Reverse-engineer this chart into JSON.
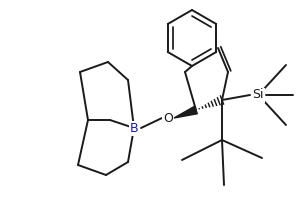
{
  "bg_color": "#ffffff",
  "line_color": "#1a1a1a",
  "line_width": 1.4,
  "fig_width": 3.01,
  "fig_height": 2.0,
  "dpi": 100,
  "B_label": "B",
  "O_label": "O",
  "Si_label": "Si",
  "label_fontsize": 9
}
